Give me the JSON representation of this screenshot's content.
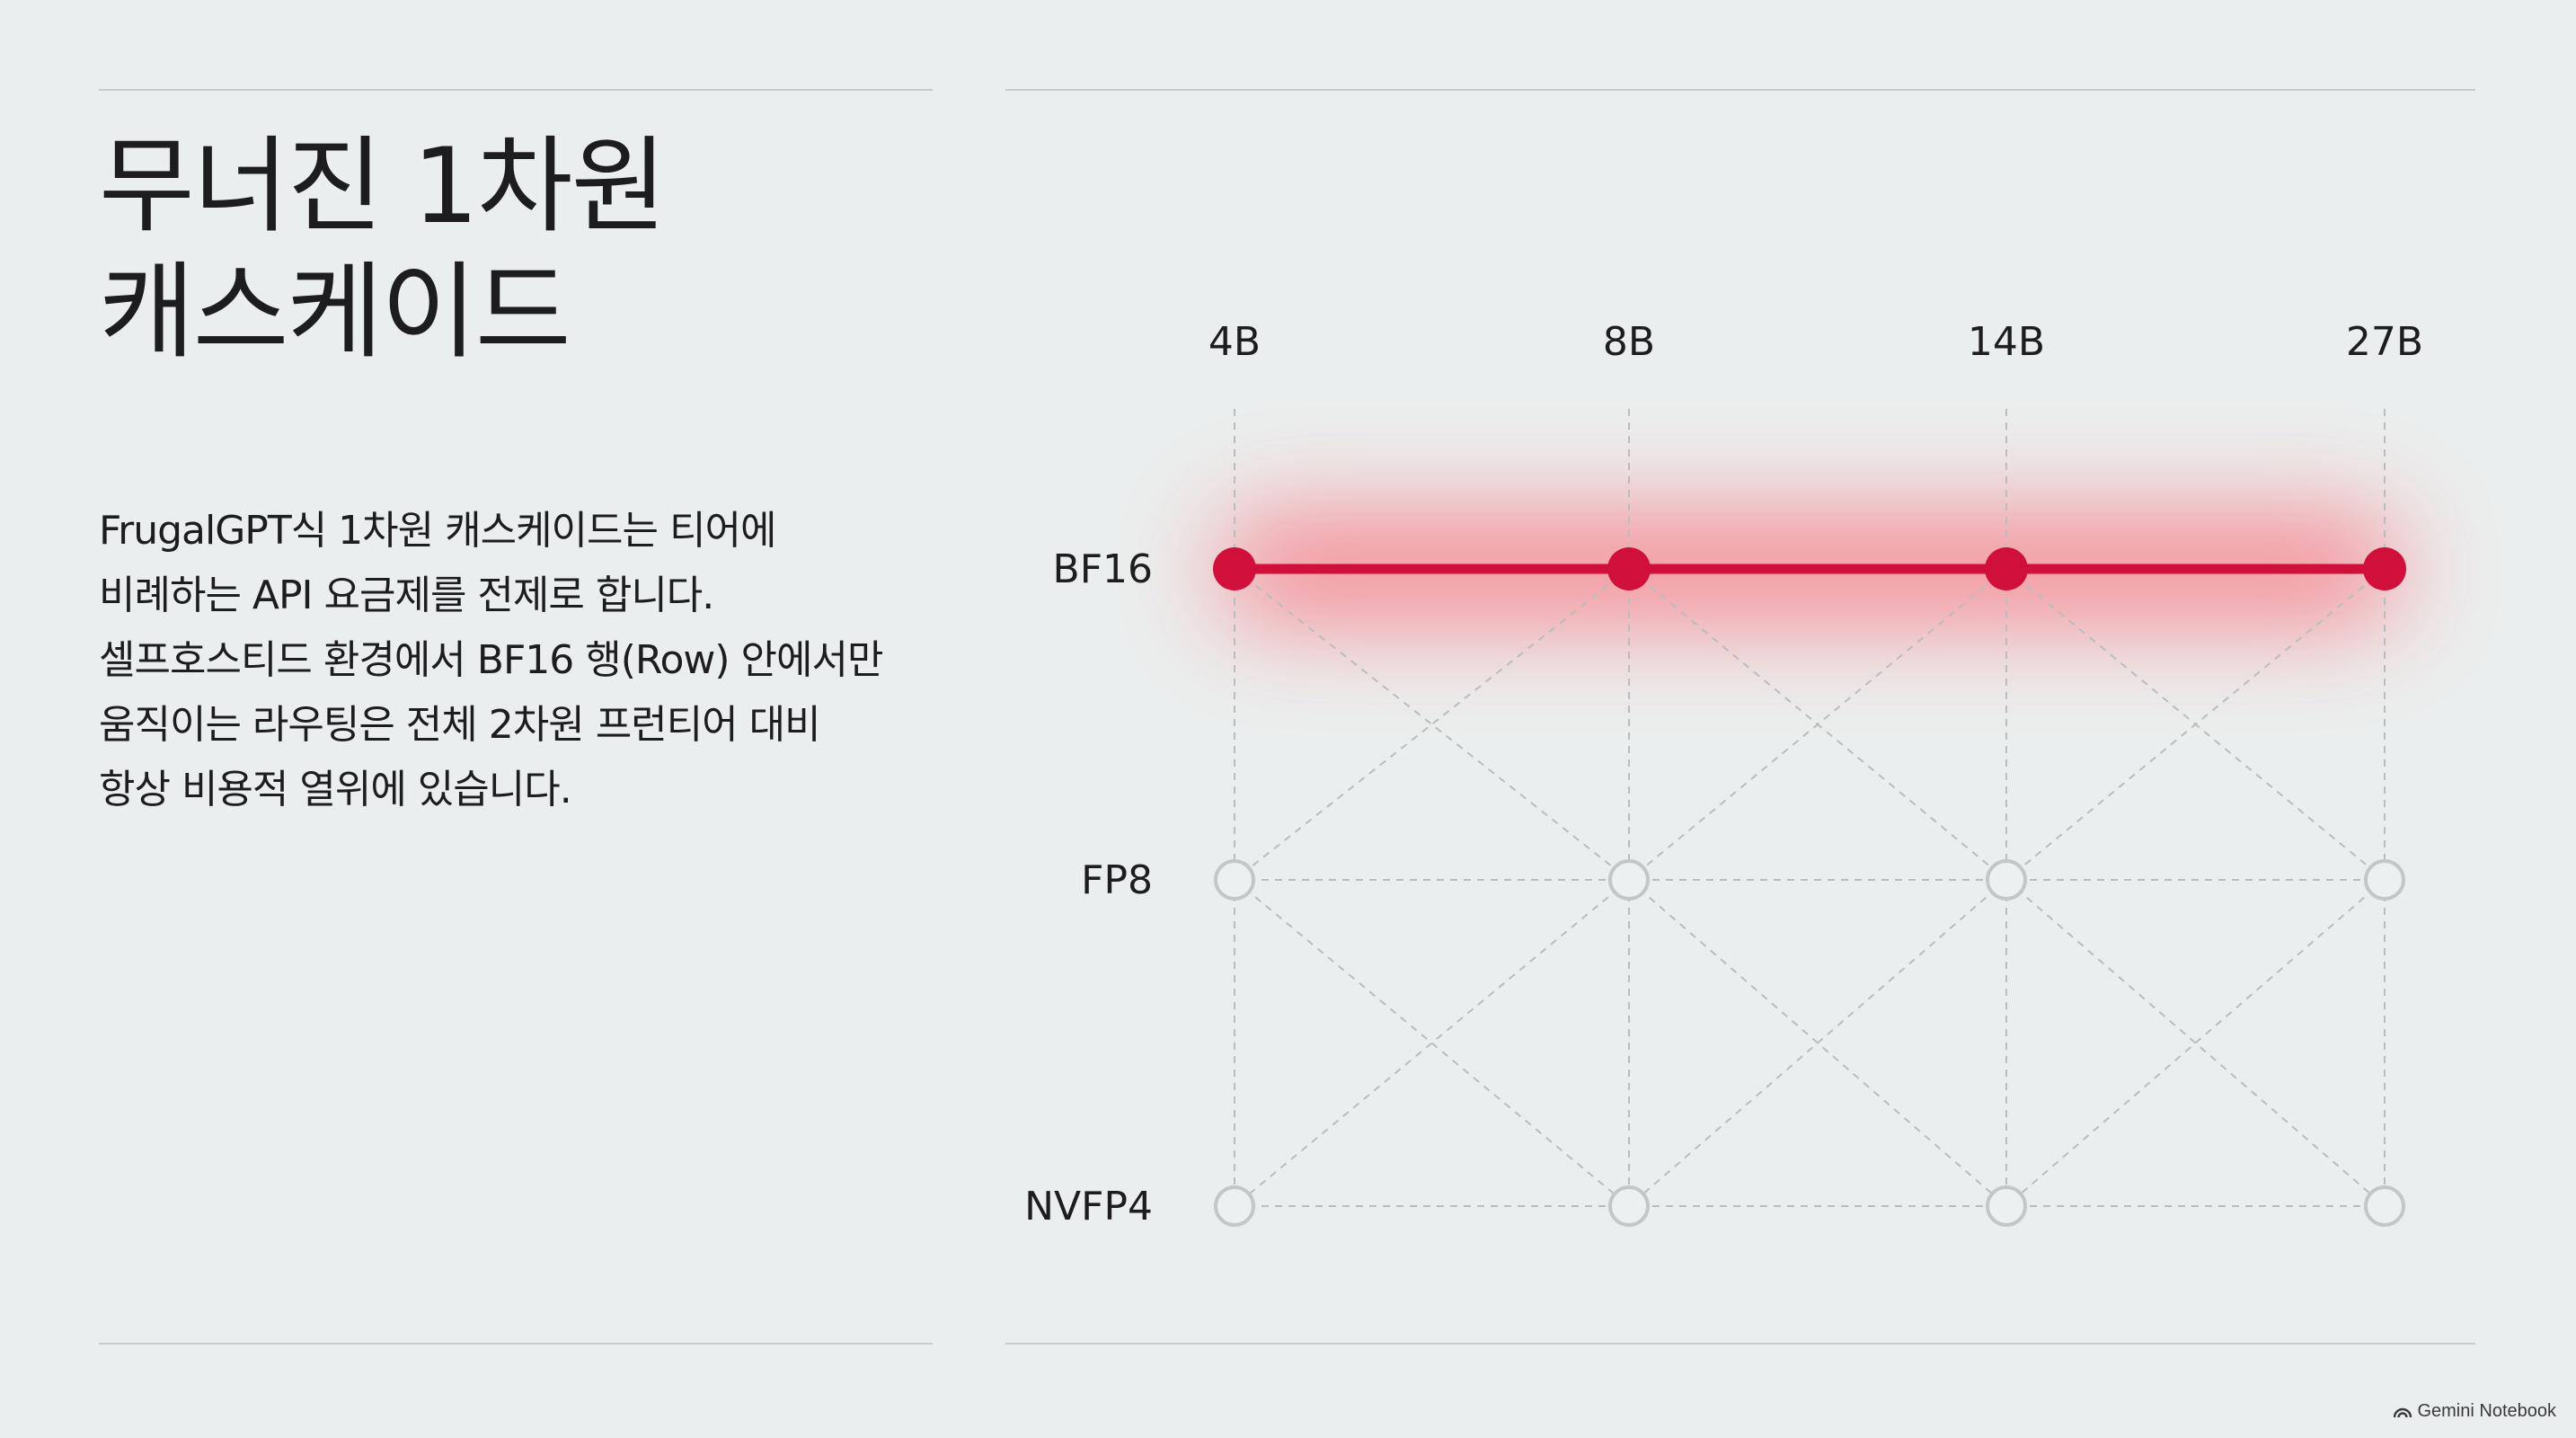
{
  "title": {
    "lines": [
      "무너진 1차원",
      "캐스케이드"
    ]
  },
  "body": {
    "lines": [
      "FrugalGPT식 1차원 캐스케이드는 티어에",
      "비례하는 API 요금제를 전제로 합니다.",
      "셀프호스티드 환경에서 BF16 행(Row) 안에서만",
      "움직이는 라우팅은 전체 2차원 프런티어 대비",
      "항상 비용적 열위에 있습니다."
    ]
  },
  "diagram": {
    "columns": [
      "4B",
      "8B",
      "14B",
      "27B"
    ],
    "rows": [
      "BF16",
      "FP8",
      "NVFP4"
    ],
    "active_row": "BF16",
    "colors": {
      "active": "#d0103a",
      "glow": "#ff3b4a",
      "grid": "#b9bdbf",
      "inactive_node": "#c4c7c9"
    }
  },
  "footer": {
    "brand": "Gemini Notebook",
    "icon": "gemini-logo-icon"
  }
}
